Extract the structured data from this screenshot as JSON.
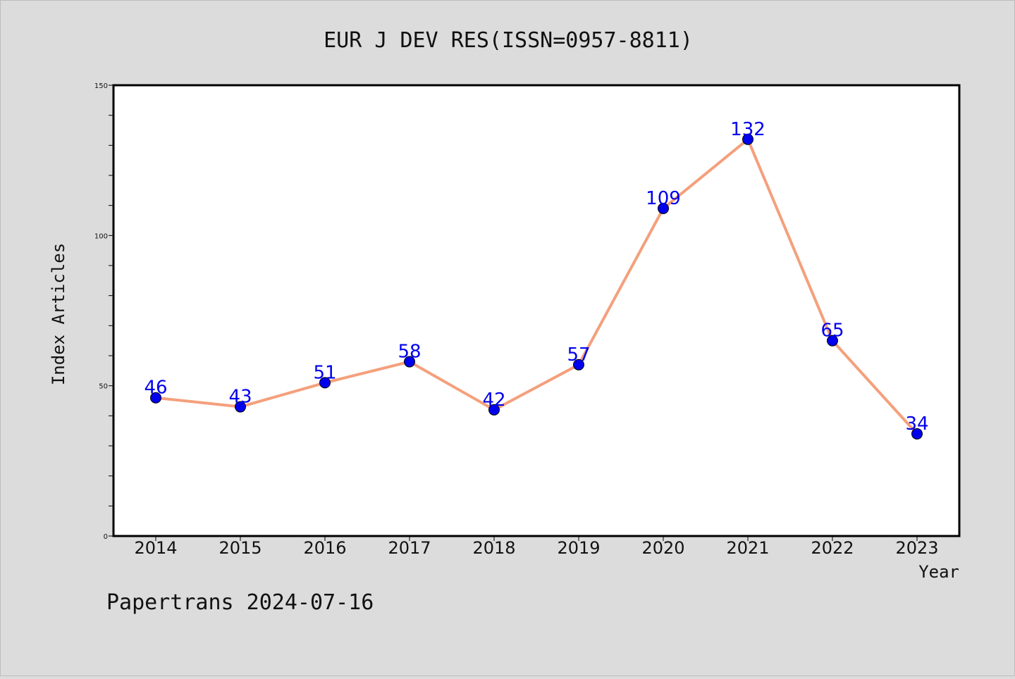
{
  "chart_data": {
    "type": "line",
    "title": "EUR J DEV RES(ISSN=0957-8811)",
    "xlabel": "Year",
    "ylabel": "Index Articles",
    "categories": [
      "2014",
      "2015",
      "2016",
      "2017",
      "2018",
      "2019",
      "2020",
      "2021",
      "2022",
      "2023"
    ],
    "series": [
      {
        "values": [
          46,
          43,
          51,
          58,
          42,
          57,
          109,
          132,
          65,
          34
        ]
      }
    ],
    "ylim": [
      0,
      150
    ],
    "yticks": [
      0,
      50,
      100,
      150
    ],
    "y_minor_step": 10,
    "grid": false,
    "data_labels": true,
    "colors": {
      "line": "#f4a07c",
      "marker": "#0000ee",
      "label": "#0000ee",
      "background": "#dcdcdc",
      "plot_bg": "#ffffff"
    }
  },
  "footer": "Papertrans 2024-07-16"
}
